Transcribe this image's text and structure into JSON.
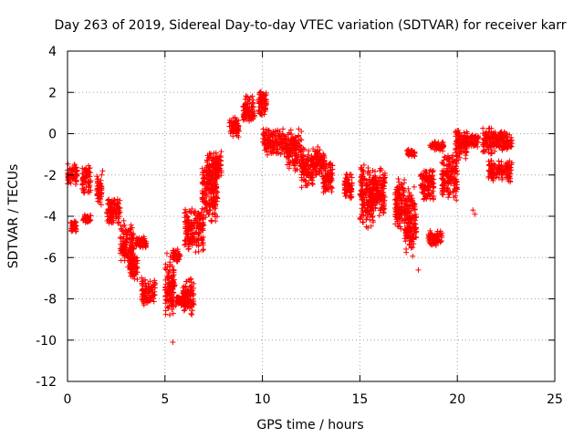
{
  "chart_data": {
    "type": "scatter",
    "title": "Day 263 of 2019, Sidereal Day-to-day VTEC variation (SDTVAR) for receiver karr",
    "xlabel": "GPS time / hours",
    "ylabel": "SDTVAR / TECUs",
    "xlim": [
      0,
      25
    ],
    "ylim": [
      -12,
      4
    ],
    "xticks": [
      0,
      5,
      10,
      15,
      20,
      25
    ],
    "yticks": [
      -12,
      -10,
      -8,
      -6,
      -4,
      -2,
      0,
      2,
      4
    ],
    "grid": true,
    "marker": "+",
    "color": "#ff0000",
    "clusters": [
      {
        "x": [
          0.0,
          0.5
        ],
        "y": [
          -2.6,
          -1.3
        ]
      },
      {
        "x": [
          0.15,
          0.45
        ],
        "y": [
          -4.9,
          -4.1
        ]
      },
      {
        "x": [
          0.75,
          1.2
        ],
        "y": [
          -3.2,
          -1.3
        ]
      },
      {
        "x": [
          0.8,
          1.2
        ],
        "y": [
          -4.4,
          -3.8
        ]
      },
      {
        "x": [
          1.5,
          1.75
        ],
        "y": [
          -3.8,
          -1.7
        ]
      },
      {
        "x": [
          2.0,
          2.7
        ],
        "y": [
          -4.6,
          -2.8
        ]
      },
      {
        "x": [
          2.7,
          3.4
        ],
        "y": [
          -6.8,
          -3.9
        ]
      },
      {
        "x": [
          3.2,
          3.6
        ],
        "y": [
          -7.3,
          -5.8
        ]
      },
      {
        "x": [
          3.5,
          4.05
        ],
        "y": [
          -5.6,
          -4.9
        ]
      },
      {
        "x": [
          3.8,
          4.5
        ],
        "y": [
          -8.5,
          -6.8
        ]
      },
      {
        "x": [
          5.0,
          5.5
        ],
        "y": [
          -9.2,
          -5.6
        ]
      },
      {
        "x": [
          5.4,
          5.8
        ],
        "y": [
          -6.3,
          -5.5
        ]
      },
      {
        "x": [
          5.55,
          6.0
        ],
        "y": [
          -8.5,
          -7.7
        ]
      },
      {
        "x": [
          5.9,
          6.5
        ],
        "y": [
          -9.1,
          -6.8
        ]
      },
      {
        "x": [
          6.0,
          7.0
        ],
        "y": [
          -6.0,
          -3.3
        ]
      },
      {
        "x": [
          6.9,
          7.7
        ],
        "y": [
          -4.6,
          -1.1
        ]
      },
      {
        "x": [
          7.1,
          7.9
        ],
        "y": [
          -2.6,
          -0.6
        ]
      },
      {
        "x": [
          8.3,
          8.8
        ],
        "y": [
          -0.3,
          1.0
        ]
      },
      {
        "x": [
          9.0,
          9.6
        ],
        "y": [
          0.3,
          2.0
        ]
      },
      {
        "x": [
          9.8,
          10.2
        ],
        "y": [
          0.5,
          2.3
        ]
      },
      {
        "x": [
          10.0,
          11.2
        ],
        "y": [
          -1.2,
          0.5
        ]
      },
      {
        "x": [
          11.2,
          12.0
        ],
        "y": [
          -2.1,
          0.5
        ]
      },
      {
        "x": [
          12.0,
          12.6
        ],
        "y": [
          -2.9,
          -0.5
        ]
      },
      {
        "x": [
          12.5,
          13.2
        ],
        "y": [
          -2.2,
          -0.5
        ]
      },
      {
        "x": [
          13.1,
          13.6
        ],
        "y": [
          -3.1,
          -1.1
        ]
      },
      {
        "x": [
          14.2,
          14.6
        ],
        "y": [
          -3.4,
          -1.7
        ]
      },
      {
        "x": [
          15.0,
          15.7
        ],
        "y": [
          -4.9,
          -1.0
        ]
      },
      {
        "x": [
          15.6,
          16.3
        ],
        "y": [
          -4.2,
          -1.4
        ]
      },
      {
        "x": [
          16.8,
          17.3
        ],
        "y": [
          -5.0,
          -1.7
        ]
      },
      {
        "x": [
          17.3,
          17.9
        ],
        "y": [
          -6.3,
          -2.2
        ]
      },
      {
        "x": [
          17.4,
          17.9
        ],
        "y": [
          -1.2,
          -0.7
        ]
      },
      {
        "x": [
          18.1,
          18.8
        ],
        "y": [
          -3.6,
          -1.5
        ]
      },
      {
        "x": [
          18.5,
          19.2
        ],
        "y": [
          -5.5,
          -4.6
        ]
      },
      {
        "x": [
          18.6,
          19.3
        ],
        "y": [
          -0.9,
          -0.3
        ]
      },
      {
        "x": [
          19.2,
          20.0
        ],
        "y": [
          -3.5,
          -0.6
        ]
      },
      {
        "x": [
          19.9,
          20.5
        ],
        "y": [
          -1.5,
          0.4
        ]
      },
      {
        "x": [
          20.3,
          21.1
        ],
        "y": [
          -0.8,
          0.1
        ]
      },
      {
        "x": [
          21.3,
          22.0
        ],
        "y": [
          -1.2,
          0.5
        ]
      },
      {
        "x": [
          21.6,
          22.8
        ],
        "y": [
          -2.5,
          -1.1
        ]
      },
      {
        "x": [
          22.0,
          22.8
        ],
        "y": [
          -1.0,
          0.3
        ]
      }
    ],
    "isolated_points": [
      {
        "x": 1.8,
        "y": -1.8
      },
      {
        "x": 5.1,
        "y": -5.8
      },
      {
        "x": 5.4,
        "y": -10.1
      },
      {
        "x": 18.0,
        "y": -6.6
      },
      {
        "x": 20.8,
        "y": -3.7
      },
      {
        "x": 20.9,
        "y": -3.9
      }
    ]
  }
}
